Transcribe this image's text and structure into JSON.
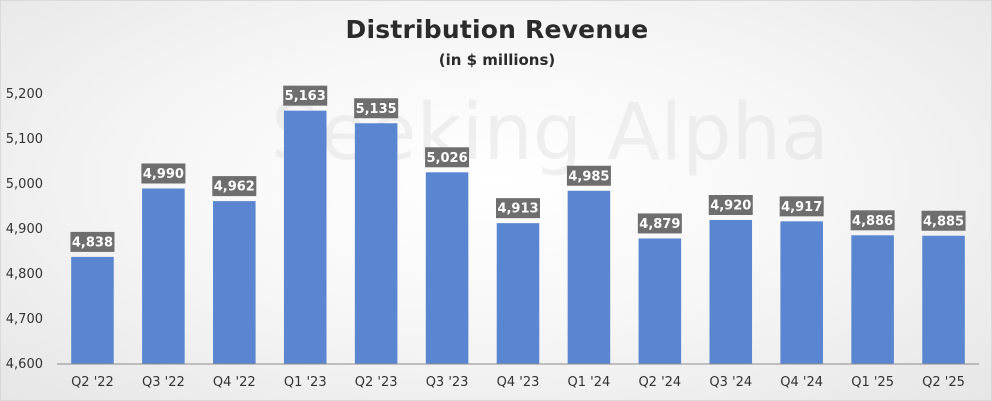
{
  "chart_data": {
    "type": "bar",
    "title": "Distribution Revenue",
    "subtitle": "(in $ millions)",
    "categories": [
      "Q2 '22",
      "Q3 '22",
      "Q4 '22",
      "Q1 '23",
      "Q2 '23",
      "Q3 '23",
      "Q4 '23",
      "Q1 '24",
      "Q2 '24",
      "Q3 '24",
      "Q4 '24",
      "Q1 '25",
      "Q2 '25"
    ],
    "values": [
      4838,
      4990,
      4962,
      5163,
      5135,
      5026,
      4913,
      4985,
      4879,
      4920,
      4917,
      4886,
      4885
    ],
    "value_labels": [
      "4,838",
      "4,990",
      "4,962",
      "5,163",
      "5,135",
      "5,026",
      "4,913",
      "4,985",
      "4,879",
      "4,920",
      "4,917",
      "4,886",
      "4,885"
    ],
    "ylim": [
      4600,
      5200
    ],
    "yticks": [
      4600,
      4700,
      4800,
      4900,
      5000,
      5100,
      5200
    ],
    "ytick_labels": [
      "4,600",
      "4,700",
      "4,800",
      "4,900",
      "5,000",
      "5,100",
      "5,200"
    ],
    "xlabel": "",
    "ylabel": "",
    "grid": false,
    "legend": "none",
    "watermark": "Seeking Alpha",
    "colors": {
      "bar": "#5a85d0",
      "data_label_bg": "#6e6e6e",
      "axis": "#8c8c8c"
    }
  }
}
